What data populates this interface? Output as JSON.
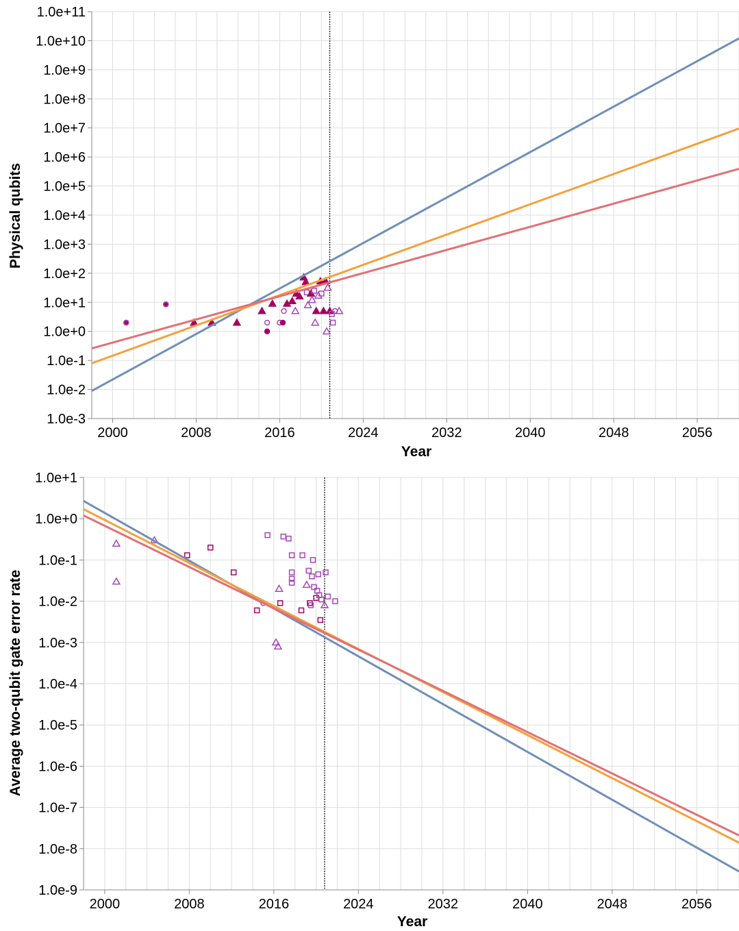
{
  "colors": {
    "blue": "#6f8fb7",
    "orange": "#f5a03d",
    "red": "#e27075",
    "point_dark": "#a4045f",
    "point_light": "#a646b8",
    "grid": "#dddddd",
    "axis": "#888888",
    "vline": "#000000"
  },
  "chart_data": [
    {
      "type": "scatter",
      "title": "",
      "xlabel": "Year",
      "ylabel": "Physical qubits",
      "y_scale": "log",
      "xlim": [
        1998,
        2060
      ],
      "ylim": [
        0.001,
        100000000000
      ],
      "grid": true,
      "x_ticks": [
        2000,
        2008,
        2016,
        2024,
        2032,
        2040,
        2048,
        2056
      ],
      "y_ticks": [
        {
          "value": 0.001,
          "label": "1.0e-3"
        },
        {
          "value": 0.01,
          "label": "1.0e-2"
        },
        {
          "value": 0.1,
          "label": "1.0e-1"
        },
        {
          "value": 1,
          "label": "1.0e+0"
        },
        {
          "value": 10,
          "label": "1.0e+1"
        },
        {
          "value": 100,
          "label": "1.0e+2"
        },
        {
          "value": 1000,
          "label": "1.0e+3"
        },
        {
          "value": 10000,
          "label": "1.0e+4"
        },
        {
          "value": 100000,
          "label": "1.0e+5"
        },
        {
          "value": 1000000,
          "label": "1.0e+6"
        },
        {
          "value": 10000000,
          "label": "1.0e+7"
        },
        {
          "value": 100000000,
          "label": "1.0e+8"
        },
        {
          "value": 1000000000,
          "label": "1.0e+9"
        },
        {
          "value": 10000000000,
          "label": "1.0e+10"
        },
        {
          "value": 100000000000,
          "label": "1.0e+11"
        }
      ],
      "vline_x": 2020.8,
      "lines": [
        {
          "color": "blue",
          "points": [
            [
              1998,
              0.009
            ],
            [
              2060,
              12000000000
            ]
          ]
        },
        {
          "color": "orange",
          "points": [
            [
              1998,
              0.08
            ],
            [
              2060,
              9500000
            ]
          ]
        },
        {
          "color": "red",
          "points": [
            [
              1998,
              0.26
            ],
            [
              2060,
              390000
            ]
          ]
        }
      ],
      "points": [
        {
          "x": 2001.3,
          "y": 2,
          "shape": "circle",
          "color": "point_dark",
          "filled": true
        },
        {
          "x": 2001.3,
          "y": 2,
          "shape": "circle",
          "color": "point_light",
          "filled": false
        },
        {
          "x": 2005.1,
          "y": 8.5,
          "shape": "circle",
          "color": "point_dark",
          "filled": true
        },
        {
          "x": 2005.1,
          "y": 8.5,
          "shape": "circle",
          "color": "point_light",
          "filled": false
        },
        {
          "x": 2007.8,
          "y": 2,
          "shape": "triangle",
          "color": "point_dark",
          "filled": true
        },
        {
          "x": 2009.5,
          "y": 2,
          "shape": "triangle",
          "color": "point_dark",
          "filled": true
        },
        {
          "x": 2011.9,
          "y": 2,
          "shape": "triangle",
          "color": "point_dark",
          "filled": true
        },
        {
          "x": 2014.3,
          "y": 5,
          "shape": "triangle",
          "color": "point_dark",
          "filled": true
        },
        {
          "x": 2014.8,
          "y": 1,
          "shape": "circle",
          "color": "point_dark",
          "filled": true
        },
        {
          "x": 2014.8,
          "y": 2,
          "shape": "circle",
          "color": "point_light",
          "filled": false
        },
        {
          "x": 2015.3,
          "y": 9,
          "shape": "triangle",
          "color": "point_dark",
          "filled": true
        },
        {
          "x": 2016.0,
          "y": 2,
          "shape": "circle",
          "color": "point_light",
          "filled": false
        },
        {
          "x": 2016.3,
          "y": 2,
          "shape": "circle",
          "color": "point_dark",
          "filled": true
        },
        {
          "x": 2016.4,
          "y": 5,
          "shape": "circle",
          "color": "point_light",
          "filled": false
        },
        {
          "x": 2016.7,
          "y": 9,
          "shape": "triangle",
          "color": "point_dark",
          "filled": true
        },
        {
          "x": 2017.2,
          "y": 11,
          "shape": "triangle",
          "color": "point_dark",
          "filled": true
        },
        {
          "x": 2017.5,
          "y": 5,
          "shape": "triangle",
          "color": "point_light",
          "filled": false
        },
        {
          "x": 2017.6,
          "y": 20,
          "shape": "triangle",
          "color": "point_dark",
          "filled": true
        },
        {
          "x": 2017.9,
          "y": 16,
          "shape": "triangle",
          "color": "point_dark",
          "filled": true
        },
        {
          "x": 2018.3,
          "y": 72,
          "shape": "triangle",
          "color": "point_dark",
          "filled": true
        },
        {
          "x": 2018.5,
          "y": 50,
          "shape": "triangle",
          "color": "point_dark",
          "filled": true
        },
        {
          "x": 2018.6,
          "y": 22,
          "shape": "square",
          "color": "point_light",
          "filled": false
        },
        {
          "x": 2018.7,
          "y": 8,
          "shape": "triangle",
          "color": "point_light",
          "filled": false
        },
        {
          "x": 2019.0,
          "y": 20,
          "shape": "triangle",
          "color": "point_dark",
          "filled": true
        },
        {
          "x": 2019.1,
          "y": 12,
          "shape": "triangle",
          "color": "point_light",
          "filled": false
        },
        {
          "x": 2019.3,
          "y": 25,
          "shape": "square",
          "color": "point_light",
          "filled": false
        },
        {
          "x": 2019.4,
          "y": 2,
          "shape": "triangle",
          "color": "point_light",
          "filled": false
        },
        {
          "x": 2019.5,
          "y": 5,
          "shape": "triangle",
          "color": "point_dark",
          "filled": true
        },
        {
          "x": 2019.7,
          "y": 17,
          "shape": "triangle",
          "color": "point_light",
          "filled": false
        },
        {
          "x": 2019.9,
          "y": 53,
          "shape": "triangle",
          "color": "point_dark",
          "filled": true
        },
        {
          "x": 2020.0,
          "y": 20,
          "shape": "square",
          "color": "point_light",
          "filled": false
        },
        {
          "x": 2020.2,
          "y": 5,
          "shape": "triangle",
          "color": "point_dark",
          "filled": true
        },
        {
          "x": 2020.4,
          "y": 53,
          "shape": "triangle",
          "color": "point_dark",
          "filled": true
        },
        {
          "x": 2020.5,
          "y": 1,
          "shape": "triangle",
          "color": "point_light",
          "filled": false
        },
        {
          "x": 2020.6,
          "y": 32,
          "shape": "triangle",
          "color": "point_light",
          "filled": false
        },
        {
          "x": 2020.8,
          "y": 5,
          "shape": "triangle",
          "color": "point_dark",
          "filled": true
        },
        {
          "x": 2021.0,
          "y": 4,
          "shape": "square",
          "color": "point_light",
          "filled": false
        },
        {
          "x": 2021.1,
          "y": 2,
          "shape": "square",
          "color": "point_light",
          "filled": false
        },
        {
          "x": 2021.3,
          "y": 5,
          "shape": "circle",
          "color": "point_light",
          "filled": false
        },
        {
          "x": 2021.7,
          "y": 5,
          "shape": "triangle",
          "color": "point_light",
          "filled": false
        }
      ]
    },
    {
      "type": "scatter",
      "title": "",
      "xlabel": "Year",
      "ylabel": "Average two-qubit gate error rate",
      "y_scale": "log",
      "xlim": [
        1998,
        2060
      ],
      "ylim": [
        1e-09,
        10
      ],
      "grid": true,
      "x_ticks": [
        2000,
        2008,
        2016,
        2024,
        2032,
        2040,
        2048,
        2056
      ],
      "y_ticks": [
        {
          "value": 1e-09,
          "label": "1.0e-9"
        },
        {
          "value": 1e-08,
          "label": "1.0e-8"
        },
        {
          "value": 1e-07,
          "label": "1.0e-7"
        },
        {
          "value": 1e-06,
          "label": "1.0e-6"
        },
        {
          "value": 1e-05,
          "label": "1.0e-5"
        },
        {
          "value": 0.0001,
          "label": "1.0e-4"
        },
        {
          "value": 0.001,
          "label": "1.0e-3"
        },
        {
          "value": 0.01,
          "label": "1.0e-2"
        },
        {
          "value": 0.1,
          "label": "1.0e-1"
        },
        {
          "value": 1,
          "label": "1.0e+0"
        },
        {
          "value": 10,
          "label": "1.0e+1"
        }
      ],
      "vline_x": 2020.8,
      "lines": [
        {
          "color": "blue",
          "points": [
            [
              1998,
              2.7
            ],
            [
              2060,
              2.8e-09
            ]
          ]
        },
        {
          "color": "orange",
          "points": [
            [
              1998,
              1.7
            ],
            [
              2060,
              1.4e-08
            ]
          ]
        },
        {
          "color": "red",
          "points": [
            [
              1998,
              1.2
            ],
            [
              2060,
              2.1e-08
            ]
          ]
        }
      ],
      "points": [
        {
          "x": 2001.1,
          "y": 0.25,
          "shape": "triangle",
          "color": "point_light",
          "filled": false
        },
        {
          "x": 2001.1,
          "y": 0.03,
          "shape": "triangle",
          "color": "point_light",
          "filled": false
        },
        {
          "x": 2004.7,
          "y": 0.3,
          "shape": "triangle",
          "color": "point_light",
          "filled": false
        },
        {
          "x": 2007.8,
          "y": 0.13,
          "shape": "square",
          "color": "point_dark",
          "filled": false
        },
        {
          "x": 2010.0,
          "y": 0.2,
          "shape": "square",
          "color": "point_dark",
          "filled": false
        },
        {
          "x": 2012.2,
          "y": 0.05,
          "shape": "square",
          "color": "point_dark",
          "filled": false
        },
        {
          "x": 2014.4,
          "y": 0.006,
          "shape": "square",
          "color": "point_dark",
          "filled": false
        },
        {
          "x": 2015.0,
          "y": 0.009,
          "shape": "circle",
          "color": "point_light",
          "filled": false
        },
        {
          "x": 2015.4,
          "y": 0.4,
          "shape": "square",
          "color": "point_light",
          "filled": false
        },
        {
          "x": 2016.2,
          "y": 0.001,
          "shape": "triangle",
          "color": "point_light",
          "filled": false
        },
        {
          "x": 2016.4,
          "y": 0.0008,
          "shape": "triangle",
          "color": "point_light",
          "filled": false
        },
        {
          "x": 2016.5,
          "y": 0.02,
          "shape": "triangle",
          "color": "point_light",
          "filled": false
        },
        {
          "x": 2016.6,
          "y": 0.009,
          "shape": "square",
          "color": "point_dark",
          "filled": false
        },
        {
          "x": 2016.9,
          "y": 0.37,
          "shape": "square",
          "color": "point_light",
          "filled": false
        },
        {
          "x": 2017.4,
          "y": 0.33,
          "shape": "square",
          "color": "point_light",
          "filled": false
        },
        {
          "x": 2017.7,
          "y": 0.13,
          "shape": "square",
          "color": "point_light",
          "filled": false
        },
        {
          "x": 2017.7,
          "y": 0.05,
          "shape": "square",
          "color": "point_light",
          "filled": false
        },
        {
          "x": 2017.7,
          "y": 0.035,
          "shape": "square",
          "color": "point_light",
          "filled": false
        },
        {
          "x": 2017.7,
          "y": 0.028,
          "shape": "square",
          "color": "point_light",
          "filled": false
        },
        {
          "x": 2018.6,
          "y": 0.006,
          "shape": "square",
          "color": "point_dark",
          "filled": false
        },
        {
          "x": 2018.7,
          "y": 0.13,
          "shape": "square",
          "color": "point_light",
          "filled": false
        },
        {
          "x": 2019.1,
          "y": 0.025,
          "shape": "triangle",
          "color": "point_light",
          "filled": false
        },
        {
          "x": 2019.3,
          "y": 0.055,
          "shape": "square",
          "color": "point_light",
          "filled": false
        },
        {
          "x": 2019.4,
          "y": 0.009,
          "shape": "square",
          "color": "point_dark",
          "filled": false
        },
        {
          "x": 2019.5,
          "y": 0.008,
          "shape": "square",
          "color": "point_light",
          "filled": false
        },
        {
          "x": 2019.6,
          "y": 0.04,
          "shape": "square",
          "color": "point_light",
          "filled": false
        },
        {
          "x": 2019.7,
          "y": 0.1,
          "shape": "square",
          "color": "point_light",
          "filled": false
        },
        {
          "x": 2019.8,
          "y": 0.022,
          "shape": "square",
          "color": "point_light",
          "filled": false
        },
        {
          "x": 2020.0,
          "y": 0.012,
          "shape": "square",
          "color": "point_dark",
          "filled": false
        },
        {
          "x": 2020.1,
          "y": 0.018,
          "shape": "square",
          "color": "point_light",
          "filled": false
        },
        {
          "x": 2020.2,
          "y": 0.045,
          "shape": "square",
          "color": "point_light",
          "filled": false
        },
        {
          "x": 2020.3,
          "y": 0.014,
          "shape": "square",
          "color": "point_light",
          "filled": false
        },
        {
          "x": 2020.4,
          "y": 0.0035,
          "shape": "square",
          "color": "point_dark",
          "filled": false
        },
        {
          "x": 2020.5,
          "y": 0.011,
          "shape": "square",
          "color": "point_light",
          "filled": false
        },
        {
          "x": 2020.8,
          "y": 0.008,
          "shape": "triangle",
          "color": "point_light",
          "filled": false
        },
        {
          "x": 2020.9,
          "y": 0.05,
          "shape": "square",
          "color": "point_light",
          "filled": false
        },
        {
          "x": 2021.1,
          "y": 0.013,
          "shape": "square",
          "color": "point_light",
          "filled": false
        },
        {
          "x": 2021.8,
          "y": 0.01,
          "shape": "square",
          "color": "point_light",
          "filled": false
        }
      ]
    }
  ]
}
